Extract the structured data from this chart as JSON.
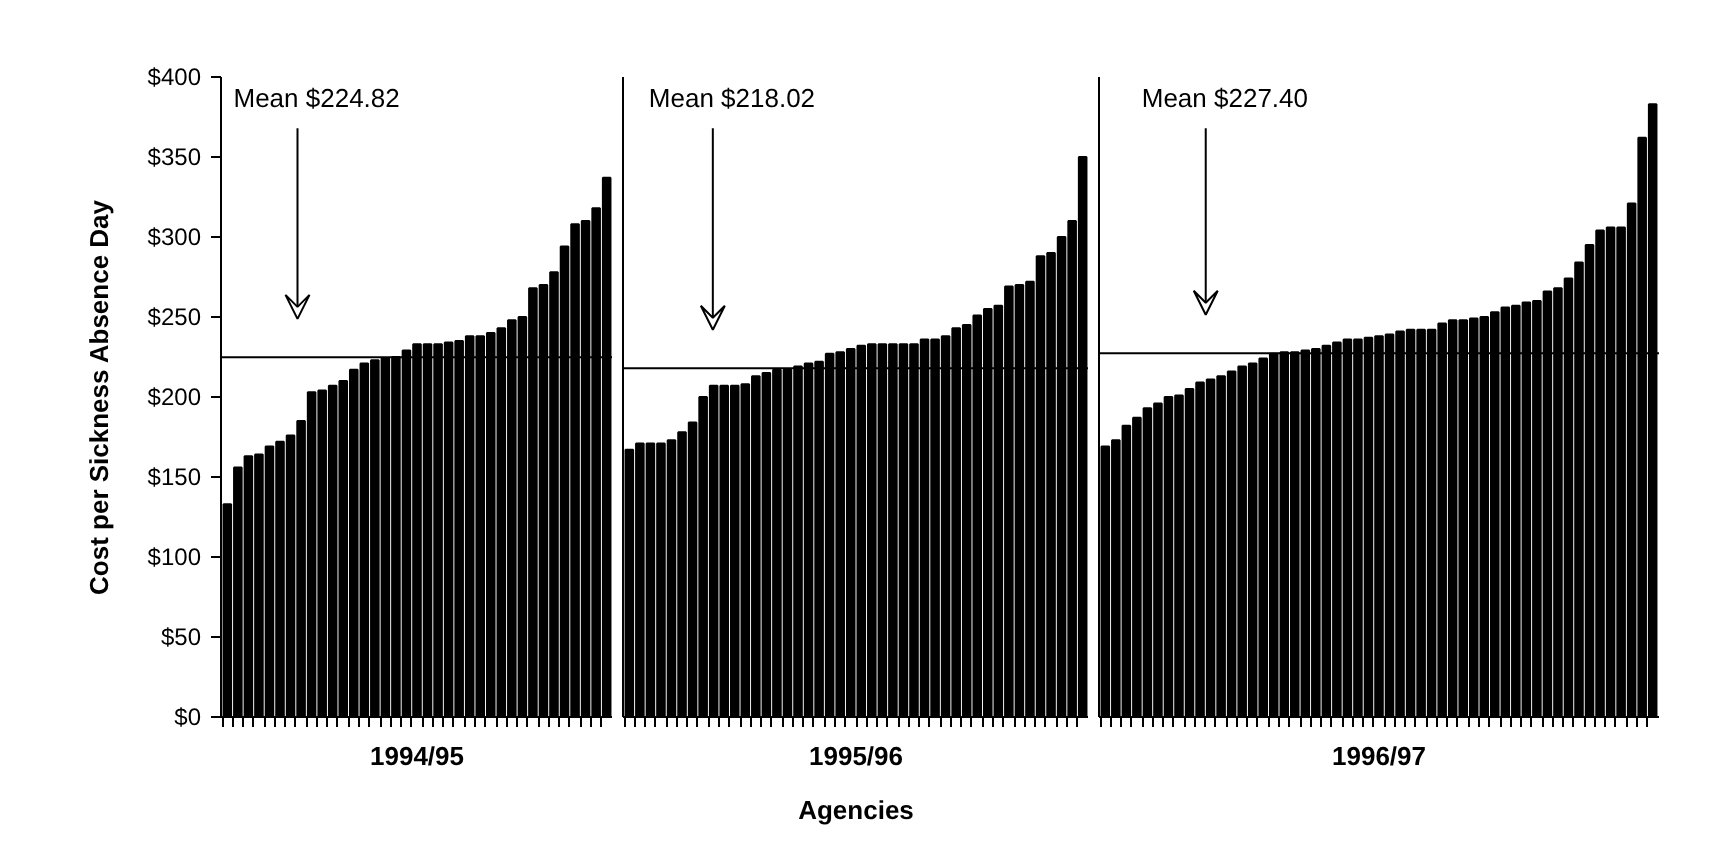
{
  "chart_data": [
    {
      "type": "bar",
      "xlabel": "1994/95",
      "ylabel": "Cost per Sickness Absence Day",
      "categories": [
        null,
        null,
        null,
        null,
        null,
        null,
        null,
        null,
        null,
        null,
        null,
        null,
        null,
        null,
        null,
        null,
        null,
        null,
        null,
        null,
        null,
        null,
        null,
        null,
        null,
        null,
        null,
        null,
        null,
        null,
        null,
        null,
        null,
        null,
        null,
        null,
        null
      ],
      "values": [
        133,
        156,
        163,
        164,
        169,
        172,
        176,
        185,
        203,
        204,
        207,
        210,
        217,
        221,
        223,
        224,
        225,
        229,
        233,
        233,
        233,
        234,
        235,
        238,
        238,
        240,
        243,
        248,
        250,
        268,
        270,
        278,
        294,
        308,
        310,
        318,
        337
      ],
      "color": "#000000",
      "ylim": [
        0,
        400
      ],
      "yticks": [
        {
          "value": 0,
          "label": "$0"
        },
        {
          "value": 50,
          "label": "$50"
        },
        {
          "value": 100,
          "label": "$100"
        },
        {
          "value": 150,
          "label": "$150"
        },
        {
          "value": 200,
          "label": "$200"
        },
        {
          "value": 250,
          "label": "$250"
        },
        {
          "value": 300,
          "label": "$300"
        },
        {
          "value": 350,
          "label": "$350"
        },
        {
          "value": 400,
          "label": "$400"
        }
      ],
      "ref_lines": [
        {
          "axis": "y",
          "value": 224.82,
          "label": "Mean $224.82",
          "color": "#000000"
        }
      ],
      "grid": false
    },
    {
      "type": "bar",
      "xlabel": "1995/96",
      "annotations": [
        "Agencies"
      ],
      "categories": [
        null,
        null,
        null,
        null,
        null,
        null,
        null,
        null,
        null,
        null,
        null,
        null,
        null,
        null,
        null,
        null,
        null,
        null,
        null,
        null,
        null,
        null,
        null,
        null,
        null,
        null,
        null,
        null,
        null,
        null,
        null,
        null,
        null,
        null,
        null,
        null,
        null,
        null,
        null,
        null,
        null,
        null,
        null,
        null
      ],
      "values": [
        167,
        171,
        171,
        171,
        173,
        178,
        184,
        200,
        207,
        207,
        207,
        208,
        213,
        215,
        217,
        217,
        219,
        221,
        222,
        227,
        228,
        230,
        232,
        233,
        233,
        233,
        233,
        233,
        236,
        236,
        238,
        243,
        245,
        251,
        255,
        257,
        269,
        270,
        272,
        288,
        290,
        300,
        310,
        350
      ],
      "color": "#000000",
      "ylim": [
        0,
        400
      ],
      "tick_labels": false,
      "ref_lines": [
        {
          "axis": "y",
          "value": 218.02,
          "label": "Mean $218.02",
          "color": "#000000"
        }
      ],
      "grid": false
    },
    {
      "type": "bar",
      "xlabel": "1996/97",
      "categories": [
        null,
        null,
        null,
        null,
        null,
        null,
        null,
        null,
        null,
        null,
        null,
        null,
        null,
        null,
        null,
        null,
        null,
        null,
        null,
        null,
        null,
        null,
        null,
        null,
        null,
        null,
        null,
        null,
        null,
        null,
        null,
        null,
        null,
        null,
        null,
        null,
        null,
        null,
        null,
        null,
        null,
        null,
        null,
        null,
        null,
        null,
        null,
        null,
        null,
        null,
        null,
        null,
        null
      ],
      "values": [
        169,
        173,
        182,
        187,
        193,
        196,
        200,
        201,
        205,
        209,
        211,
        213,
        216,
        219,
        221,
        224,
        227,
        228,
        228,
        229,
        230,
        232,
        234,
        236,
        236,
        237,
        238,
        239,
        241,
        242,
        242,
        242,
        246,
        248,
        248,
        249,
        250,
        253,
        256,
        257,
        259,
        260,
        266,
        268,
        274,
        284,
        295,
        304,
        306,
        306,
        321,
        362,
        383
      ],
      "color": "#000000",
      "ylim": [
        0,
        400
      ],
      "tick_labels": false,
      "ref_lines": [
        {
          "axis": "y",
          "value": 227.4,
          "label": "Mean $227.40",
          "color": "#000000"
        }
      ],
      "grid": false
    }
  ]
}
